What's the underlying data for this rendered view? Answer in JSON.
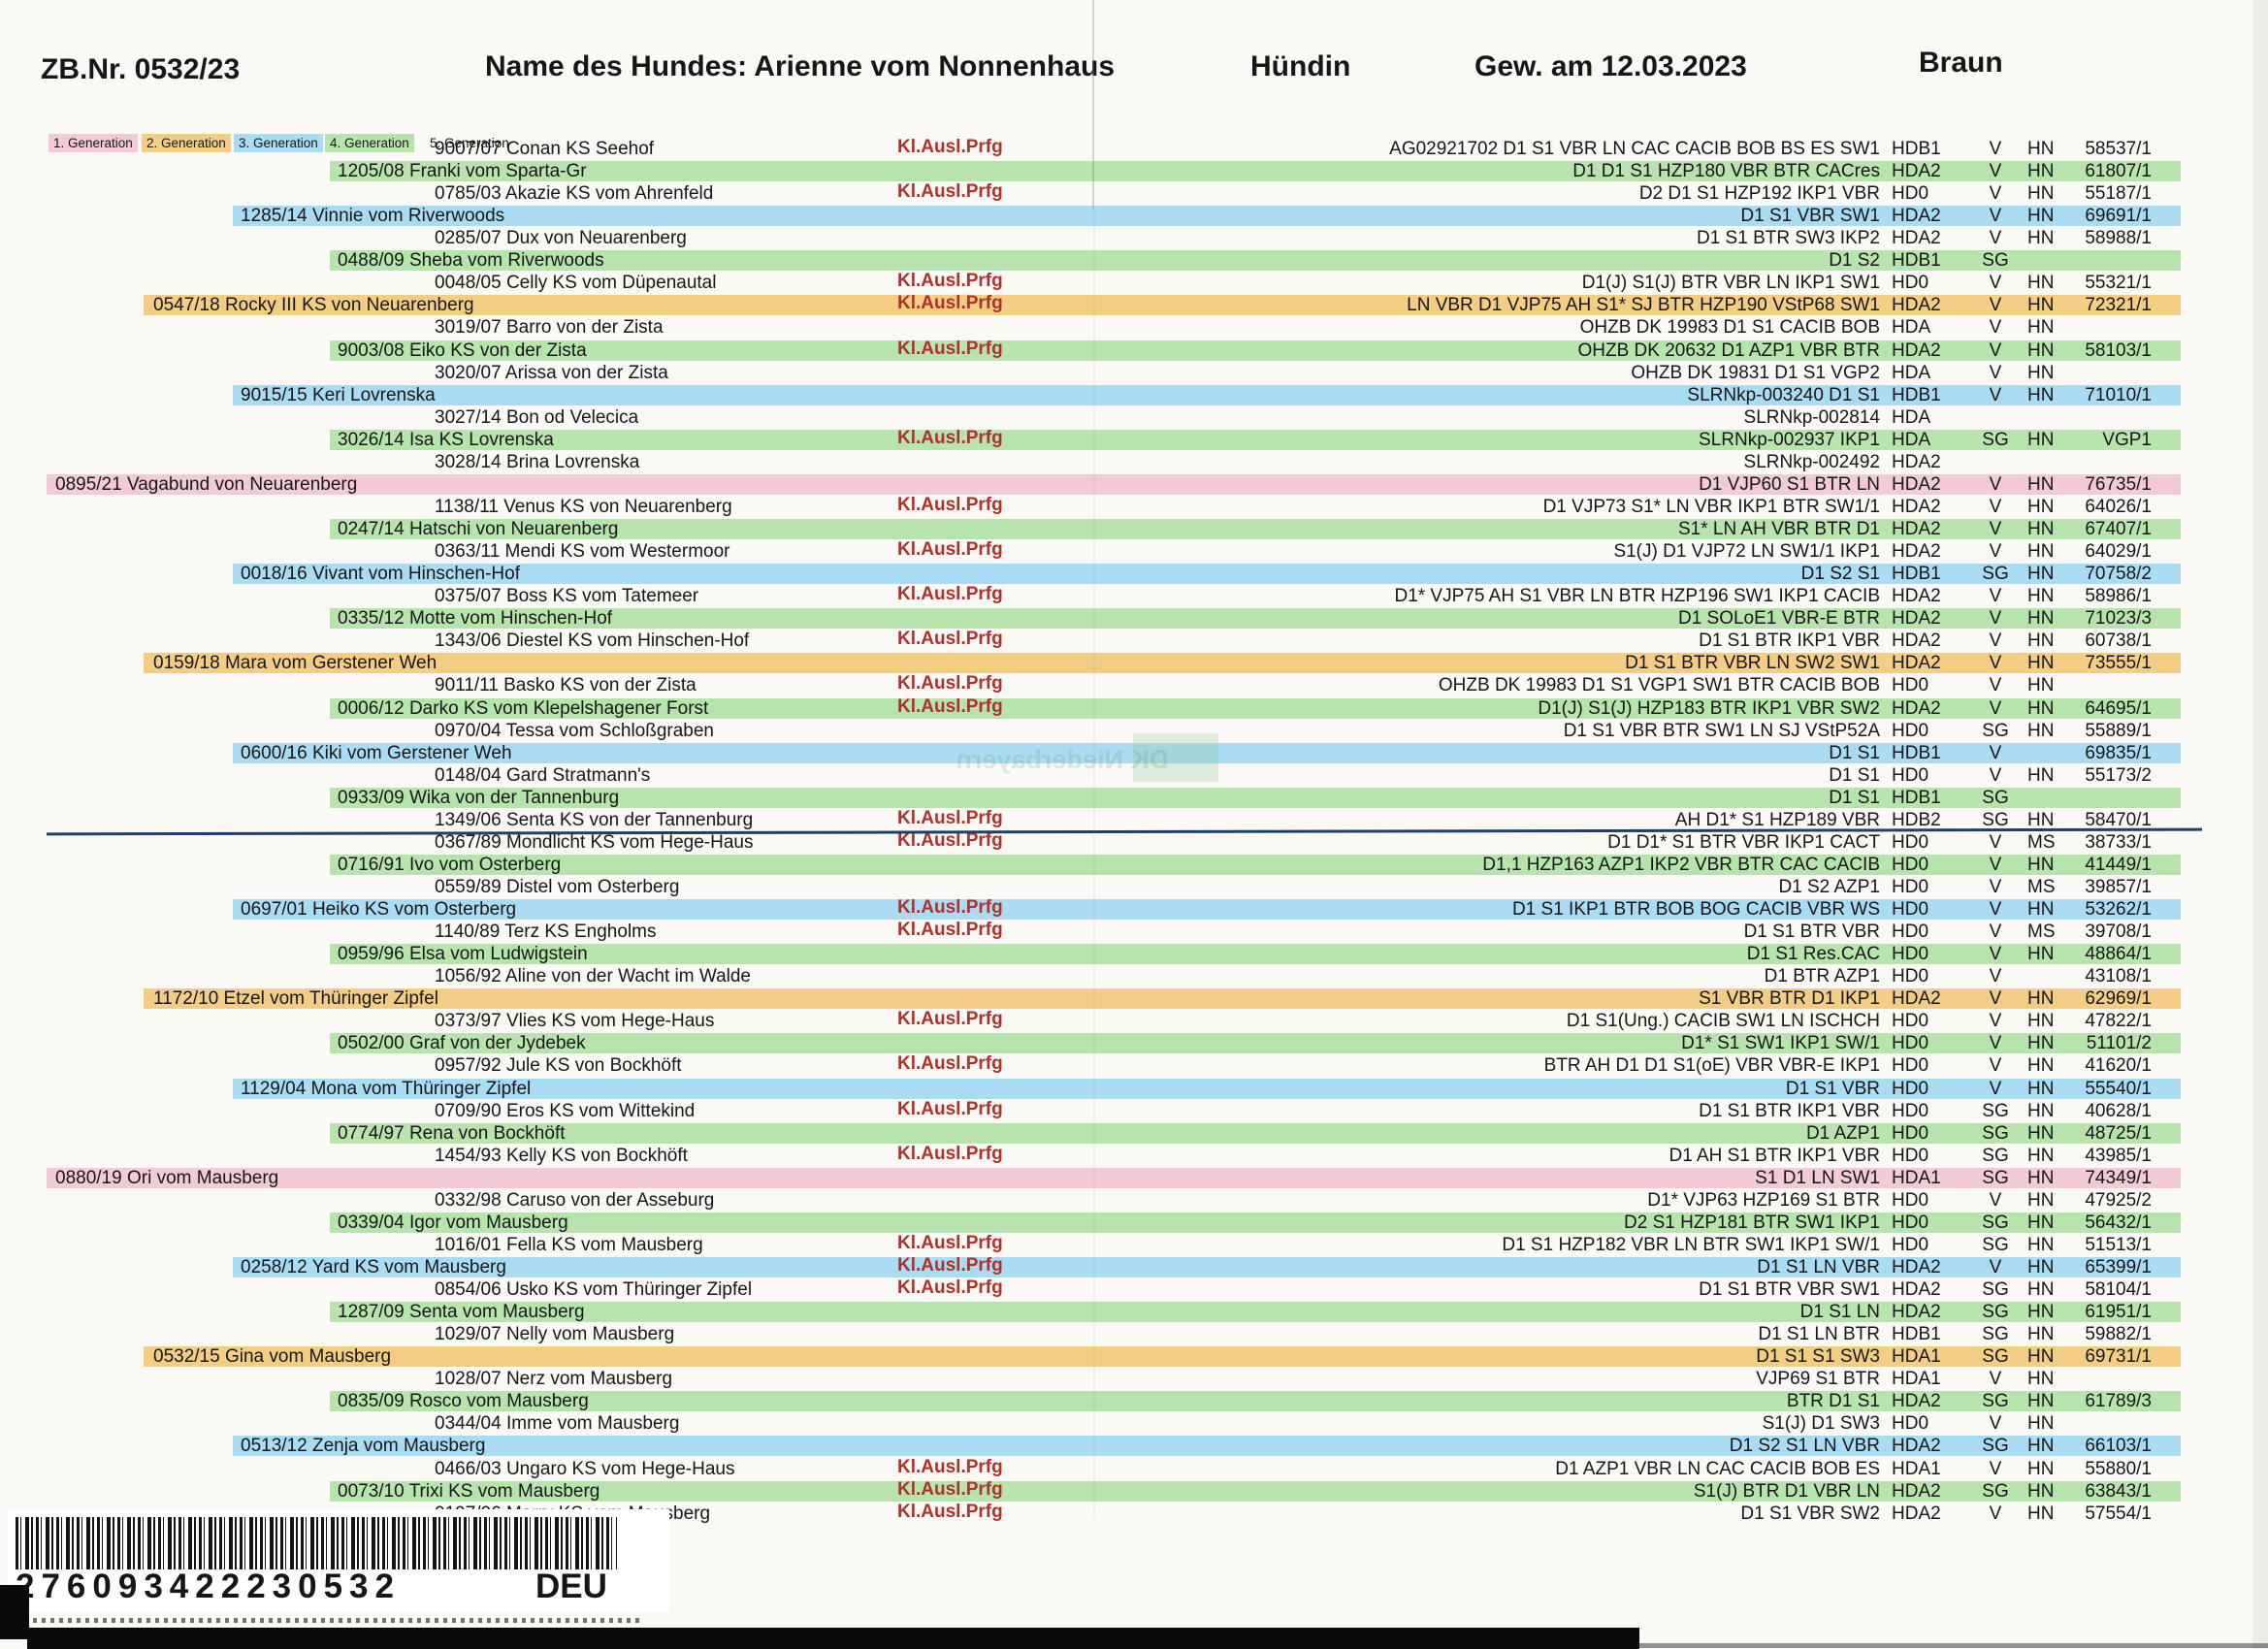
{
  "header": {
    "zb_nr": "ZB.Nr. 0532/23",
    "dog_name": "Name des Hundes: Arienne vom Nonnenhaus",
    "sex": "Hündin",
    "birth_date": "Gew. am 12.03.2023",
    "coat_color": "Braun"
  },
  "legend": [
    {
      "label": "1. Generation",
      "color": "#f2cbd7"
    },
    {
      "label": "2. Generation",
      "color": "#f4cd85"
    },
    {
      "label": "3. Generation",
      "color": "#a9dbf2"
    },
    {
      "label": "4. Generation",
      "color": "#b7e4ad"
    },
    {
      "label": "5. Generation",
      "color": "transparent"
    }
  ],
  "kl_label": "Kl.Ausl.Prfg",
  "colors": {
    "gen1_highlight": "#f2cbd7",
    "gen2_highlight": "#f4cd85",
    "gen3_highlight": "#a9dbf2",
    "gen4_highlight": "#b7e4ad",
    "kl_text": "#b0302c",
    "divider_line": "#1d4166"
  },
  "watermark": "DK Niederbayern",
  "barcode": {
    "number": "276093422230532",
    "country": "DEU"
  },
  "divider_after_row": 31,
  "rows": [
    {
      "gen": 5,
      "name": "9007/07 Conan KS Seehof",
      "kl": true,
      "titles": "AG02921702 D1 S1 VBR LN CAC CACIB BOB BS ES SW1",
      "hd": "HDB1",
      "rating": "V",
      "reg": "HN",
      "num": "58537/1"
    },
    {
      "gen": 4,
      "name": "1205/08 Franki vom Sparta-Gr",
      "kl": false,
      "titles": "D1 D1 S1 HZP180 VBR BTR CACres",
      "hd": "HDA2",
      "rating": "V",
      "reg": "HN",
      "num": "61807/1"
    },
    {
      "gen": 5,
      "name": "0785/03 Akazie KS vom Ahrenfeld",
      "kl": true,
      "titles": "D2 D1 S1 HZP192 IKP1 VBR",
      "hd": "HD0",
      "rating": "V",
      "reg": "HN",
      "num": "55187/1"
    },
    {
      "gen": 3,
      "name": "1285/14 Vinnie vom Riverwoods",
      "kl": false,
      "titles": "D1 S1 VBR SW1",
      "hd": "HDA2",
      "rating": "V",
      "reg": "HN",
      "num": "69691/1"
    },
    {
      "gen": 5,
      "name": "0285/07 Dux von Neuarenberg",
      "kl": false,
      "titles": "D1 S1 BTR SW3 IKP2",
      "hd": "HDA2",
      "rating": "V",
      "reg": "HN",
      "num": "58988/1"
    },
    {
      "gen": 4,
      "name": "0488/09 Sheba vom Riverwoods",
      "kl": false,
      "titles": "D1 S2",
      "hd": "HDB1",
      "rating": "SG",
      "reg": "",
      "num": ""
    },
    {
      "gen": 5,
      "name": "0048/05 Celly KS vom Düpenautal",
      "kl": true,
      "titles": "D1(J) S1(J) BTR VBR LN IKP1 SW1",
      "hd": "HD0",
      "rating": "V",
      "reg": "HN",
      "num": "55321/1"
    },
    {
      "gen": 2,
      "name": "0547/18 Rocky III KS von Neuarenberg",
      "kl": true,
      "titles": "LN VBR D1 VJP75 AH S1* SJ BTR HZP190 VStP68 SW1",
      "hd": "HDA2",
      "rating": "V",
      "reg": "HN",
      "num": "72321/1"
    },
    {
      "gen": 5,
      "name": "3019/07 Barro von der Zista",
      "kl": false,
      "titles": "OHZB DK 19983 D1 S1 CACIB BOB",
      "hd": "HDA",
      "rating": "V",
      "reg": "HN",
      "num": ""
    },
    {
      "gen": 4,
      "name": "9003/08 Eiko KS von der Zista",
      "kl": true,
      "titles": "OHZB DK 20632 D1 AZP1 VBR BTR",
      "hd": "HDA2",
      "rating": "V",
      "reg": "HN",
      "num": "58103/1"
    },
    {
      "gen": 5,
      "name": "3020/07 Arissa von der Zista",
      "kl": false,
      "titles": "OHZB DK 19831 D1 S1 VGP2",
      "hd": "HDA",
      "rating": "V",
      "reg": "HN",
      "num": ""
    },
    {
      "gen": 3,
      "name": "9015/15 Keri Lovrenska",
      "kl": false,
      "titles": "SLRNkp-003240 D1 S1",
      "hd": "HDB1",
      "rating": "V",
      "reg": "HN",
      "num": "71010/1"
    },
    {
      "gen": 5,
      "name": "3027/14 Bon od Velecica",
      "kl": false,
      "titles": "SLRNkp-002814",
      "hd": "HDA",
      "rating": "",
      "reg": "",
      "num": ""
    },
    {
      "gen": 4,
      "name": "3026/14 Isa KS Lovrenska",
      "kl": true,
      "titles": "SLRNkp-002937 IKP1",
      "hd": "HDA",
      "rating": "SG",
      "reg": "HN",
      "num": "VGP1"
    },
    {
      "gen": 5,
      "name": "3028/14 Brina Lovrenska",
      "kl": false,
      "titles": "SLRNkp-002492",
      "hd": "HDA2",
      "rating": "",
      "reg": "",
      "num": ""
    },
    {
      "gen": 1,
      "name": "0895/21 Vagabund von Neuarenberg",
      "kl": false,
      "titles": "D1 VJP60 S1 BTR LN",
      "hd": "HDA2",
      "rating": "V",
      "reg": "HN",
      "num": "76735/1"
    },
    {
      "gen": 5,
      "name": "1138/11 Venus KS von Neuarenberg",
      "kl": true,
      "titles": "D1 VJP73 S1* LN VBR IKP1 BTR SW1/1",
      "hd": "HDA2",
      "rating": "V",
      "reg": "HN",
      "num": "64026/1"
    },
    {
      "gen": 4,
      "name": "0247/14 Hatschi von Neuarenberg",
      "kl": false,
      "titles": "S1* LN AH VBR BTR D1",
      "hd": "HDA2",
      "rating": "V",
      "reg": "HN",
      "num": "67407/1"
    },
    {
      "gen": 5,
      "name": "0363/11 Mendi KS vom Westermoor",
      "kl": true,
      "titles": "S1(J) D1 VJP72 LN SW1/1 IKP1",
      "hd": "HDA2",
      "rating": "V",
      "reg": "HN",
      "num": "64029/1"
    },
    {
      "gen": 3,
      "name": "0018/16 Vivant vom Hinschen-Hof",
      "kl": false,
      "titles": "D1 S2 S1",
      "hd": "HDB1",
      "rating": "SG",
      "reg": "HN",
      "num": "70758/2"
    },
    {
      "gen": 5,
      "name": "0375/07 Boss KS vom Tatemeer",
      "kl": true,
      "titles": "D1* VJP75 AH S1 VBR LN BTR HZP196 SW1 IKP1 CACIB",
      "hd": "HDA2",
      "rating": "V",
      "reg": "HN",
      "num": "58986/1"
    },
    {
      "gen": 4,
      "name": "0335/12 Motte vom Hinschen-Hof",
      "kl": false,
      "titles": "D1 SOLoE1 VBR-E BTR",
      "hd": "HDA2",
      "rating": "V",
      "reg": "HN",
      "num": "71023/3"
    },
    {
      "gen": 5,
      "name": "1343/06 Diestel KS vom Hinschen-Hof",
      "kl": true,
      "titles": "D1 S1 BTR IKP1 VBR",
      "hd": "HDA2",
      "rating": "V",
      "reg": "HN",
      "num": "60738/1"
    },
    {
      "gen": 2,
      "name": "0159/18 Mara vom Gerstener Weh",
      "kl": false,
      "titles": "D1 S1 BTR VBR LN SW2 SW1",
      "hd": "HDA2",
      "rating": "V",
      "reg": "HN",
      "num": "73555/1"
    },
    {
      "gen": 5,
      "name": "9011/11 Basko KS von der Zista",
      "kl": true,
      "titles": "OHZB DK 19983 D1 S1 VGP1 SW1 BTR CACIB BOB",
      "hd": "HD0",
      "rating": "V",
      "reg": "HN",
      "num": ""
    },
    {
      "gen": 4,
      "name": "0006/12 Darko KS vom Klepelshagener Forst",
      "kl": true,
      "titles": "D1(J) S1(J) HZP183 BTR IKP1 VBR SW2",
      "hd": "HDA2",
      "rating": "V",
      "reg": "HN",
      "num": "64695/1"
    },
    {
      "gen": 5,
      "name": "0970/04 Tessa vom Schloßgraben",
      "kl": false,
      "titles": "D1 S1 VBR BTR SW1 LN SJ VStP52A",
      "hd": "HD0",
      "rating": "SG",
      "reg": "HN",
      "num": "55889/1"
    },
    {
      "gen": 3,
      "name": "0600/16 Kiki vom Gerstener Weh",
      "kl": false,
      "titles": "D1 S1",
      "hd": "HDB1",
      "rating": "V",
      "reg": "",
      "num": "69835/1"
    },
    {
      "gen": 5,
      "name": "0148/04 Gard Stratmann's",
      "kl": false,
      "titles": "D1 S1",
      "hd": "HD0",
      "rating": "V",
      "reg": "HN",
      "num": "55173/2"
    },
    {
      "gen": 4,
      "name": "0933/09 Wika von der Tannenburg",
      "kl": false,
      "titles": "D1 S1",
      "hd": "HDB1",
      "rating": "SG",
      "reg": "",
      "num": ""
    },
    {
      "gen": 5,
      "name": "1349/06 Senta KS von der Tannenburg",
      "kl": true,
      "titles": "AH D1* S1 HZP189 VBR",
      "hd": "HDB2",
      "rating": "SG",
      "reg": "HN",
      "num": "58470/1"
    },
    {
      "gen": 5,
      "name": "0367/89 Mondlicht KS vom Hege-Haus",
      "kl": true,
      "titles": "D1 D1* S1 BTR VBR IKP1 CACT",
      "hd": "HD0",
      "rating": "V",
      "reg": "MS",
      "num": "38733/1"
    },
    {
      "gen": 4,
      "name": "0716/91 Ivo vom Osterberg",
      "kl": false,
      "titles": "D1,1 HZP163 AZP1 IKP2 VBR BTR CAC CACIB",
      "hd": "HD0",
      "rating": "V",
      "reg": "HN",
      "num": "41449/1"
    },
    {
      "gen": 5,
      "name": "0559/89 Distel vom Osterberg",
      "kl": false,
      "titles": "D1 S2 AZP1",
      "hd": "HD0",
      "rating": "V",
      "reg": "MS",
      "num": "39857/1"
    },
    {
      "gen": 3,
      "name": "0697/01 Heiko KS vom Osterberg",
      "kl": true,
      "titles": "D1 S1 IKP1 BTR BOB BOG CACIB VBR WS",
      "hd": "HD0",
      "rating": "V",
      "reg": "HN",
      "num": "53262/1"
    },
    {
      "gen": 5,
      "name": "1140/89 Terz KS Engholms",
      "kl": true,
      "titles": "D1 S1 BTR VBR",
      "hd": "HD0",
      "rating": "V",
      "reg": "MS",
      "num": "39708/1"
    },
    {
      "gen": 4,
      "name": "0959/96 Elsa vom Ludwigstein",
      "kl": false,
      "titles": "D1 S1 Res.CAC",
      "hd": "HD0",
      "rating": "V",
      "reg": "HN",
      "num": "48864/1"
    },
    {
      "gen": 5,
      "name": "1056/92 Aline von der Wacht im Walde",
      "kl": false,
      "titles": "D1 BTR AZP1",
      "hd": "HD0",
      "rating": "V",
      "reg": "",
      "num": "43108/1"
    },
    {
      "gen": 2,
      "name": "1172/10 Etzel vom Thüringer Zipfel",
      "kl": false,
      "titles": "S1 VBR BTR D1 IKP1",
      "hd": "HDA2",
      "rating": "V",
      "reg": "HN",
      "num": "62969/1"
    },
    {
      "gen": 5,
      "name": "0373/97 Vlies KS vom Hege-Haus",
      "kl": true,
      "titles": "D1 S1(Ung.) CACIB SW1 LN ISCHCH",
      "hd": "HD0",
      "rating": "V",
      "reg": "HN",
      "num": "47822/1"
    },
    {
      "gen": 4,
      "name": "0502/00 Graf von der Jydebek",
      "kl": false,
      "titles": "D1* S1 SW1 IKP1 SW/1",
      "hd": "HD0",
      "rating": "V",
      "reg": "HN",
      "num": "51101/2"
    },
    {
      "gen": 5,
      "name": "0957/92 Jule KS von Bockhöft",
      "kl": true,
      "titles": "BTR AH D1 D1 S1(oE) VBR VBR-E IKP1",
      "hd": "HD0",
      "rating": "V",
      "reg": "HN",
      "num": "41620/1"
    },
    {
      "gen": 3,
      "name": "1129/04 Mona vom Thüringer Zipfel",
      "kl": false,
      "titles": "D1 S1 VBR",
      "hd": "HD0",
      "rating": "V",
      "reg": "HN",
      "num": "55540/1"
    },
    {
      "gen": 5,
      "name": "0709/90 Eros KS vom Wittekind",
      "kl": true,
      "titles": "D1 S1 BTR IKP1 VBR",
      "hd": "HD0",
      "rating": "SG",
      "reg": "HN",
      "num": "40628/1"
    },
    {
      "gen": 4,
      "name": "0774/97 Rena von Bockhöft",
      "kl": false,
      "titles": "D1 AZP1",
      "hd": "HD0",
      "rating": "SG",
      "reg": "HN",
      "num": "48725/1"
    },
    {
      "gen": 5,
      "name": "1454/93 Kelly KS von Bockhöft",
      "kl": true,
      "titles": "D1 AH S1 BTR IKP1 VBR",
      "hd": "HD0",
      "rating": "SG",
      "reg": "HN",
      "num": "43985/1"
    },
    {
      "gen": 1,
      "name": "0880/19 Ori vom Mausberg",
      "kl": false,
      "titles": "S1 D1 LN SW1",
      "hd": "HDA1",
      "rating": "SG",
      "reg": "HN",
      "num": "74349/1"
    },
    {
      "gen": 5,
      "name": "0332/98 Caruso von der Asseburg",
      "kl": false,
      "titles": "D1* VJP63 HZP169 S1 BTR",
      "hd": "HD0",
      "rating": "V",
      "reg": "HN",
      "num": "47925/2"
    },
    {
      "gen": 4,
      "name": "0339/04 Igor vom Mausberg",
      "kl": false,
      "titles": "D2 S1 HZP181 BTR SW1 IKP1",
      "hd": "HD0",
      "rating": "SG",
      "reg": "HN",
      "num": "56432/1"
    },
    {
      "gen": 5,
      "name": "1016/01 Fella KS vom Mausberg",
      "kl": true,
      "titles": "D1 S1 HZP182 VBR LN BTR SW1 IKP1 SW/1",
      "hd": "HD0",
      "rating": "SG",
      "reg": "HN",
      "num": "51513/1"
    },
    {
      "gen": 3,
      "name": "0258/12 Yard KS vom Mausberg",
      "kl": true,
      "titles": "D1 S1 LN VBR",
      "hd": "HDA2",
      "rating": "V",
      "reg": "HN",
      "num": "65399/1"
    },
    {
      "gen": 5,
      "name": "0854/06 Usko KS vom Thüringer Zipfel",
      "kl": true,
      "titles": "D1 S1 BTR VBR SW1",
      "hd": "HDA2",
      "rating": "SG",
      "reg": "HN",
      "num": "58104/1"
    },
    {
      "gen": 4,
      "name": "1287/09 Senta vom Mausberg",
      "kl": false,
      "titles": "D1 S1 LN",
      "hd": "HDA2",
      "rating": "SG",
      "reg": "HN",
      "num": "61951/1"
    },
    {
      "gen": 5,
      "name": "1029/07 Nelly vom Mausberg",
      "kl": false,
      "titles": "D1 S1 LN BTR",
      "hd": "HDB1",
      "rating": "SG",
      "reg": "HN",
      "num": "59882/1"
    },
    {
      "gen": 2,
      "name": "0532/15 Gina vom Mausberg",
      "kl": false,
      "titles": "D1 S1 S1 SW3",
      "hd": "HDA1",
      "rating": "SG",
      "reg": "HN",
      "num": "69731/1"
    },
    {
      "gen": 5,
      "name": "1028/07 Nerz vom Mausberg",
      "kl": false,
      "titles": "VJP69 S1 BTR",
      "hd": "HDA1",
      "rating": "V",
      "reg": "HN",
      "num": ""
    },
    {
      "gen": 4,
      "name": "0835/09 Rosco vom Mausberg",
      "kl": false,
      "titles": "BTR D1 S1",
      "hd": "HDA2",
      "rating": "SG",
      "reg": "HN",
      "num": "61789/3"
    },
    {
      "gen": 5,
      "name": "0344/04 Imme vom Mausberg",
      "kl": false,
      "titles": "S1(J) D1 SW3",
      "hd": "HD0",
      "rating": "V",
      "reg": "HN",
      "num": ""
    },
    {
      "gen": 3,
      "name": "0513/12 Zenja vom Mausberg",
      "kl": false,
      "titles": "D1 S2 S1 LN VBR",
      "hd": "HDA2",
      "rating": "SG",
      "reg": "HN",
      "num": "66103/1"
    },
    {
      "gen": 5,
      "name": "0466/03 Ungaro KS vom Hege-Haus",
      "kl": true,
      "titles": "D1 AZP1 VBR LN CAC CACIB BOB ES",
      "hd": "HDA1",
      "rating": "V",
      "reg": "HN",
      "num": "55880/1"
    },
    {
      "gen": 4,
      "name": "0073/10 Trixi KS vom Mausberg",
      "kl": true,
      "titles": "S1(J) BTR D1 VBR LN",
      "hd": "HDA2",
      "rating": "SG",
      "reg": "HN",
      "num": "63843/1"
    },
    {
      "gen": 5,
      "name": "0197/06 Marry KS vom Mausberg",
      "kl": true,
      "titles": "D1 S1 VBR SW2",
      "hd": "HDA2",
      "rating": "V",
      "reg": "HN",
      "num": "57554/1"
    }
  ]
}
